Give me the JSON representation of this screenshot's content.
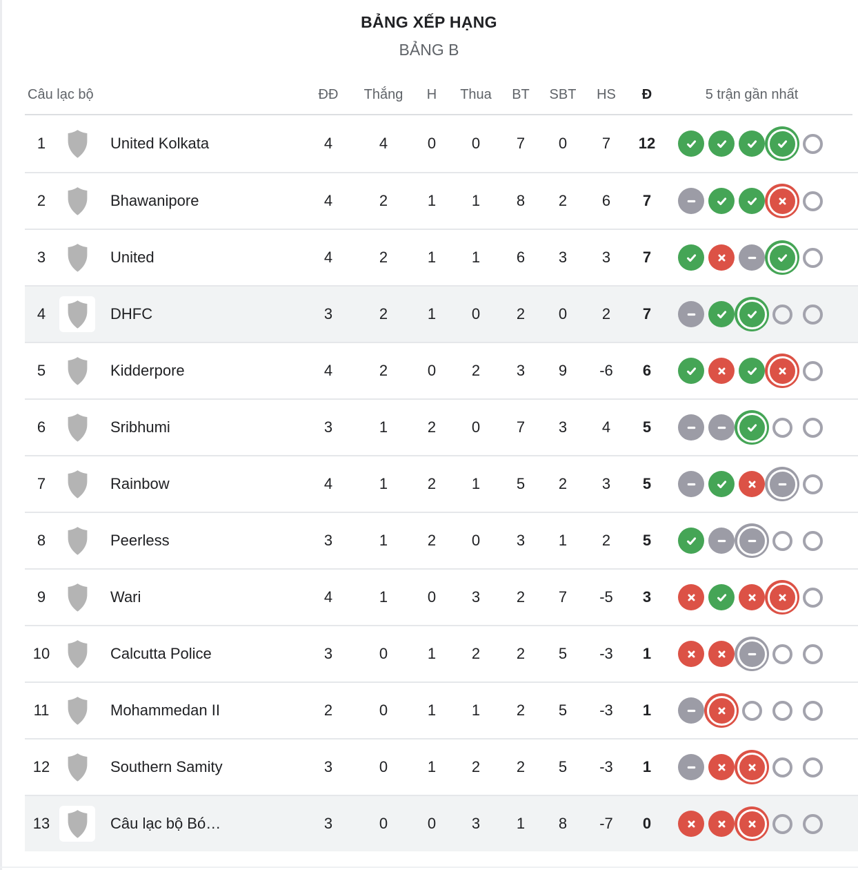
{
  "header": {
    "title": "BẢNG XẾP HẠNG",
    "subtitle": "BẢNG B"
  },
  "table": {
    "columns": {
      "club": "Câu lạc bộ",
      "played": "ĐĐ",
      "won": "Thắng",
      "drawn": "H",
      "lost": "Thua",
      "gf": "BT",
      "ga": "SBT",
      "gd": "HS",
      "points": "Đ",
      "form": "5 trận gần nhất"
    },
    "rows": [
      {
        "rank": "1",
        "club": "United Kolkata",
        "played": "4",
        "won": "4",
        "drawn": "0",
        "lost": "0",
        "gf": "7",
        "ga": "0",
        "gd": "7",
        "points": "12",
        "highlight": false,
        "form": [
          "win",
          "win",
          "win",
          "win!",
          "empty"
        ]
      },
      {
        "rank": "2",
        "club": "Bhawanipore",
        "played": "4",
        "won": "2",
        "drawn": "1",
        "lost": "1",
        "gf": "8",
        "ga": "2",
        "gd": "6",
        "points": "7",
        "highlight": false,
        "form": [
          "draw",
          "win",
          "win",
          "loss!",
          "empty"
        ]
      },
      {
        "rank": "3",
        "club": "United",
        "played": "4",
        "won": "2",
        "drawn": "1",
        "lost": "1",
        "gf": "6",
        "ga": "3",
        "gd": "3",
        "points": "7",
        "highlight": false,
        "form": [
          "win",
          "loss",
          "draw",
          "win!",
          "empty"
        ]
      },
      {
        "rank": "4",
        "club": "DHFC",
        "played": "3",
        "won": "2",
        "drawn": "1",
        "lost": "0",
        "gf": "2",
        "ga": "0",
        "gd": "2",
        "points": "7",
        "highlight": true,
        "form": [
          "draw",
          "win",
          "win!",
          "empty",
          "empty"
        ]
      },
      {
        "rank": "5",
        "club": "Kidderpore",
        "played": "4",
        "won": "2",
        "drawn": "0",
        "lost": "2",
        "gf": "3",
        "ga": "9",
        "gd": "-6",
        "points": "6",
        "highlight": false,
        "form": [
          "win",
          "loss",
          "win",
          "loss!",
          "empty"
        ]
      },
      {
        "rank": "6",
        "club": "Sribhumi",
        "played": "3",
        "won": "1",
        "drawn": "2",
        "lost": "0",
        "gf": "7",
        "ga": "3",
        "gd": "4",
        "points": "5",
        "highlight": false,
        "form": [
          "draw",
          "draw",
          "win!",
          "empty",
          "empty"
        ]
      },
      {
        "rank": "7",
        "club": "Rainbow",
        "played": "4",
        "won": "1",
        "drawn": "2",
        "lost": "1",
        "gf": "5",
        "ga": "2",
        "gd": "3",
        "points": "5",
        "highlight": false,
        "form": [
          "draw",
          "win",
          "loss",
          "draw!",
          "empty"
        ]
      },
      {
        "rank": "8",
        "club": "Peerless",
        "played": "3",
        "won": "1",
        "drawn": "2",
        "lost": "0",
        "gf": "3",
        "ga": "1",
        "gd": "2",
        "points": "5",
        "highlight": false,
        "form": [
          "win",
          "draw",
          "draw!",
          "empty",
          "empty"
        ]
      },
      {
        "rank": "9",
        "club": "Wari",
        "played": "4",
        "won": "1",
        "drawn": "0",
        "lost": "3",
        "gf": "2",
        "ga": "7",
        "gd": "-5",
        "points": "3",
        "highlight": false,
        "form": [
          "loss",
          "win",
          "loss",
          "loss!",
          "empty"
        ]
      },
      {
        "rank": "10",
        "club": "Calcutta Police",
        "played": "3",
        "won": "0",
        "drawn": "1",
        "lost": "2",
        "gf": "2",
        "ga": "5",
        "gd": "-3",
        "points": "1",
        "highlight": false,
        "form": [
          "loss",
          "loss",
          "draw!",
          "empty",
          "empty"
        ]
      },
      {
        "rank": "11",
        "club": "Mohammedan II",
        "played": "2",
        "won": "0",
        "drawn": "1",
        "lost": "1",
        "gf": "2",
        "ga": "5",
        "gd": "-3",
        "points": "1",
        "highlight": false,
        "form": [
          "draw",
          "loss!",
          "empty",
          "empty",
          "empty"
        ]
      },
      {
        "rank": "12",
        "club": "Southern Samity",
        "played": "3",
        "won": "0",
        "drawn": "1",
        "lost": "2",
        "gf": "2",
        "ga": "5",
        "gd": "-3",
        "points": "1",
        "highlight": false,
        "form": [
          "draw",
          "loss",
          "loss!",
          "empty",
          "empty"
        ]
      },
      {
        "rank": "13",
        "club": "Câu lạc bộ Bó…",
        "played": "3",
        "won": "0",
        "drawn": "0",
        "lost": "3",
        "gf": "1",
        "ga": "8",
        "gd": "-7",
        "points": "0",
        "highlight": true,
        "form": [
          "loss",
          "loss",
          "loss!",
          "empty",
          "empty"
        ]
      }
    ]
  },
  "icons": {
    "win": "check-icon",
    "draw": "dash-icon",
    "loss": "x-icon",
    "empty": "empty-circle-icon",
    "club": "shield-icon"
  },
  "colors": {
    "win_green": "#45a556",
    "loss_red": "#dc5246",
    "draw_gray": "#9c9ca6",
    "empty_border": "#a3a3ad",
    "shield_gray": "#b4b4b4",
    "highlight_row": "#f1f3f4",
    "text_dark": "#202124",
    "text_muted": "#5f6368"
  }
}
